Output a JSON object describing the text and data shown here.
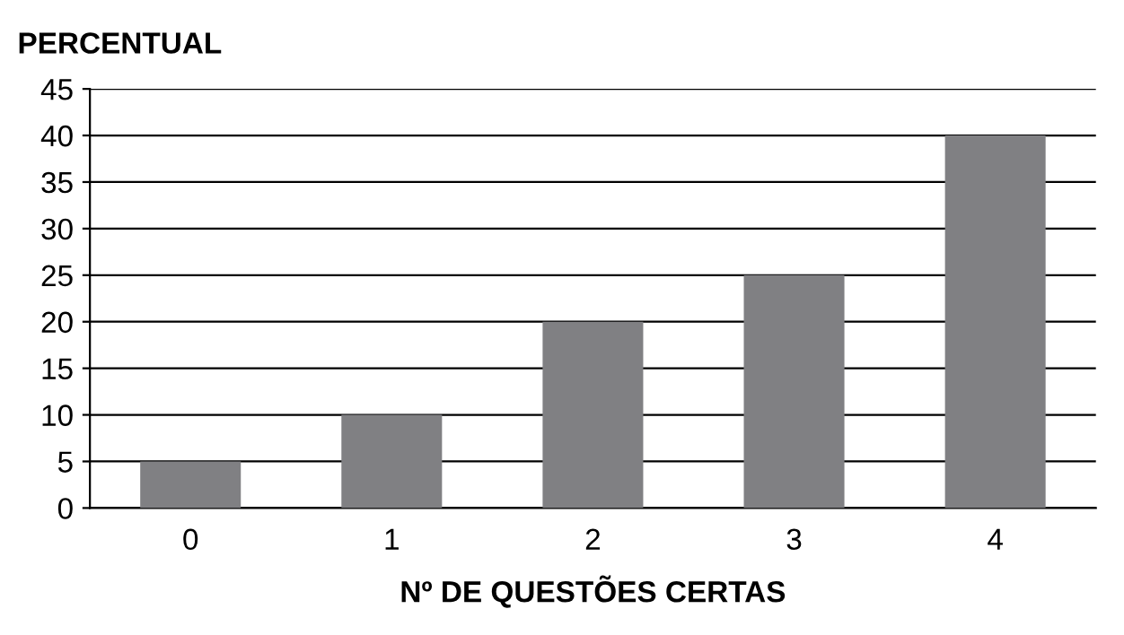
{
  "chart_data": {
    "type": "bar",
    "ylabel": "PERCENTUAL",
    "xlabel": "Nº DE QUESTÕES CERTAS",
    "categories": [
      "0",
      "1",
      "2",
      "3",
      "4"
    ],
    "values": [
      5,
      10,
      20,
      25,
      40
    ],
    "color": "#808083",
    "ylim": [
      0,
      45
    ],
    "yticks": [
      0,
      5,
      10,
      15,
      20,
      25,
      30,
      35,
      40,
      45
    ],
    "grid": "y",
    "legend": false
  }
}
